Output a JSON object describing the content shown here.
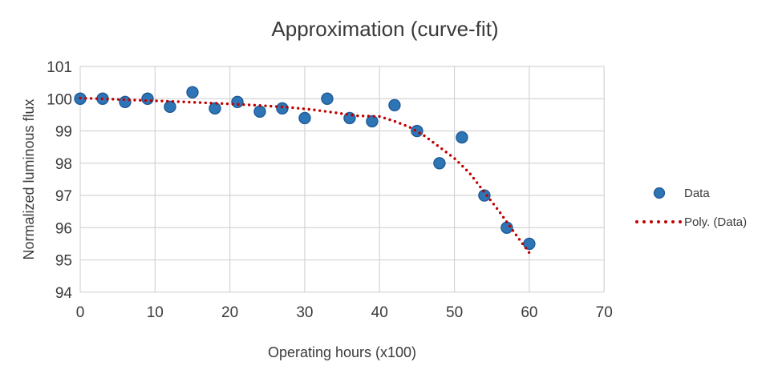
{
  "title": "Approximation (curve-fit)",
  "colors": {
    "marker_fill": "#2e75b6",
    "marker_stroke": "#1f5b97",
    "trendline": "#c00000",
    "gridline": "#d4d4d4",
    "text": "#3a3a3a"
  },
  "legend": {
    "position": "right",
    "items": [
      {
        "label": "Data",
        "marker": "circle",
        "color": "#2e75b6"
      },
      {
        "label": "Poly. (Data)",
        "marker": "dotted-line",
        "color": "#c00000"
      }
    ]
  },
  "chart_data": {
    "type": "scatter",
    "title": "Approximation (curve-fit)",
    "xlabel": "Operating hours (x100)",
    "ylabel": "Normalized luminous flux",
    "xlim": [
      0,
      70
    ],
    "ylim": [
      94,
      101
    ],
    "x_ticks": [
      0,
      10,
      20,
      30,
      40,
      50,
      60,
      70
    ],
    "y_ticks": [
      94,
      95,
      96,
      97,
      98,
      99,
      100,
      101
    ],
    "grid": true,
    "legend_position": "right",
    "series": [
      {
        "name": "Data",
        "type": "scatter",
        "color": "#2e75b6",
        "x": [
          0,
          3,
          6,
          9,
          12,
          15,
          18,
          21,
          24,
          27,
          30,
          33,
          36,
          39,
          42,
          45,
          48,
          51,
          54,
          57,
          60
        ],
        "y": [
          100.0,
          100.0,
          99.9,
          100.0,
          99.75,
          100.2,
          99.7,
          99.9,
          99.6,
          99.7,
          99.4,
          100.0,
          99.4,
          99.3,
          99.8,
          99.0,
          98.0,
          98.8,
          97.0,
          96.0,
          95.5
        ]
      },
      {
        "name": "Poly. (Data)",
        "type": "trendline-dotted",
        "color": "#c00000",
        "points": [
          [
            0,
            100.02
          ],
          [
            4,
            99.99
          ],
          [
            8,
            99.95
          ],
          [
            12,
            99.92
          ],
          [
            16,
            99.88
          ],
          [
            20,
            99.84
          ],
          [
            24,
            99.79
          ],
          [
            28,
            99.73
          ],
          [
            31,
            99.66
          ],
          [
            34,
            99.57
          ],
          [
            37,
            99.47
          ],
          [
            40,
            99.45
          ],
          [
            42,
            99.3
          ],
          [
            44,
            99.12
          ],
          [
            46,
            98.85
          ],
          [
            48,
            98.5
          ],
          [
            50,
            98.15
          ],
          [
            52,
            97.7
          ],
          [
            54,
            97.1
          ],
          [
            56,
            96.5
          ],
          [
            58,
            95.85
          ],
          [
            60,
            95.22
          ]
        ]
      }
    ]
  }
}
